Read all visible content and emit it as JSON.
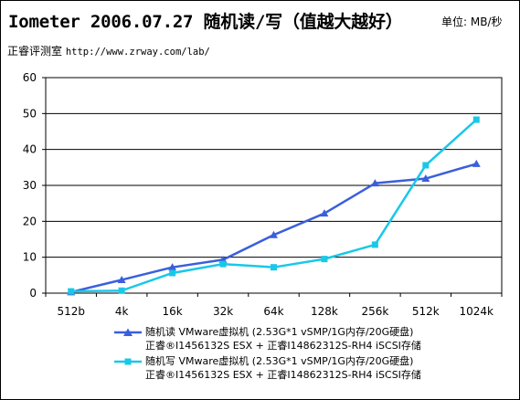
{
  "header": {
    "title": "Iometer 2006.07.27 随机读/写（值越大越好）",
    "unit": "单位: MB/秒",
    "source_label": "正睿评测室",
    "source_url": "http://www.zrway.com/lab/"
  },
  "chart_data": {
    "type": "line",
    "title": "Iometer 2006.07.27 随机读/写（值越大越好）",
    "xlabel": "",
    "ylabel": "",
    "ylim": [
      0,
      60
    ],
    "yticks": [
      0,
      10,
      20,
      30,
      40,
      50,
      60
    ],
    "grid": true,
    "legend_position": "bottom",
    "categories": [
      "512b",
      "4k",
      "16k",
      "32k",
      "64k",
      "128k",
      "256k",
      "512k",
      "1024k"
    ],
    "series": [
      {
        "name": "随机读 VMware虚拟机 (2.53G*1 vSMP/1G内存/20G硬盘)",
        "name_line2": "正睿®I1456132S ESX + 正睿I14862312S-RH4 iSCSI存储",
        "values": [
          0.3,
          3.7,
          7.2,
          9.3,
          16.2,
          22.2,
          30.6,
          31.9,
          36.0
        ],
        "marker": "triangle",
        "color": "#3a5fdc"
      },
      {
        "name": "随机写 VMware虚拟机 (2.53G*1 vSMP/1G内存/20G硬盘)",
        "name_line2": "正睿®I1456132S ESX + 正睿I14862312S-RH4 iSCSI存储",
        "values": [
          0.5,
          0.7,
          5.6,
          8.1,
          7.2,
          9.5,
          13.5,
          35.6,
          48.3
        ],
        "marker": "square",
        "color": "#19c8e8"
      }
    ]
  }
}
